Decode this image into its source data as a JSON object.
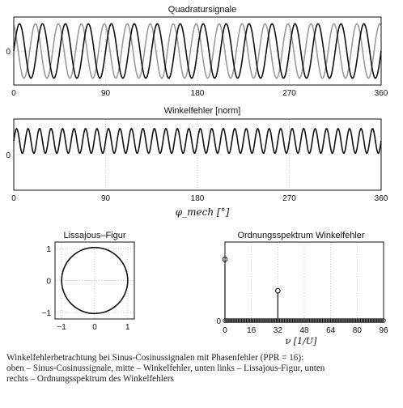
{
  "chart_data": [
    {
      "type": "line",
      "title": "Quadratursignale",
      "x_ticks": [
        "0",
        "90",
        "180",
        "270",
        "360"
      ],
      "y_ticks": [
        "0"
      ],
      "xlim": [
        0,
        360
      ],
      "ylim": [
        -1.25,
        1.25
      ],
      "cycles": 16,
      "phase_error_deg": 20,
      "series": [
        {
          "name": "sin",
          "color": "#111111",
          "amplitude": 1.0
        },
        {
          "name": "cos",
          "color": "#9a9a9a",
          "amplitude": 1.0
        }
      ],
      "grid": true
    },
    {
      "type": "line",
      "title": "Winkelfehler [norm]",
      "x_ticks": [
        "0",
        "90",
        "180",
        "270",
        "360"
      ],
      "y_ticks": [
        "0"
      ],
      "xlim": [
        0,
        360
      ],
      "ylim": [
        -1.3,
        1.3
      ],
      "cycles": 32,
      "mean": 0.5,
      "amplitude": 0.45,
      "xlabel": "φ_mech [°]",
      "grid": true
    },
    {
      "type": "scatter",
      "title": "Lissajous–Figur",
      "x_ticks": [
        "−1",
        "0",
        "1"
      ],
      "y_ticks": [
        "1",
        "0",
        "−1"
      ],
      "xlim": [
        -1.2,
        1.2
      ],
      "ylim": [
        -1.2,
        1.2
      ],
      "radius": 1.0,
      "grid": true
    },
    {
      "type": "bar",
      "title": "Ordnungsspektrum Winkelfehler",
      "x_ticks": [
        "0",
        "16",
        "32",
        "48",
        "64",
        "80",
        "96"
      ],
      "xlim": [
        0,
        96
      ],
      "ylim": [
        0,
        1
      ],
      "xlabel": "ν [1/U]",
      "stems": [
        {
          "order": 0,
          "value": 0.78
        },
        {
          "order": 32,
          "value": 0.38
        }
      ],
      "grid": true
    }
  ],
  "caption": {
    "lines": [
      "Winkelfehlerbetrachtung bei Sinus-Cosinussignalen mit Phasenfehler (PPR = 16):",
      "oben – Sinus-Cosinussignale, mitte – Winkelfehler, unten links – Lissajous-Figur, unten",
      "rechts – Ordnungsspektrum des Winkelfehlers"
    ]
  }
}
